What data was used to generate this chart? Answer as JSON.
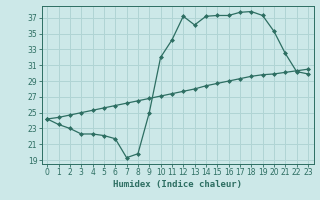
{
  "title": "",
  "xlabel": "Humidex (Indice chaleur)",
  "background_color": "#cce8e8",
  "grid_color": "#b0d4d4",
  "line_color": "#2d6e62",
  "xlim": [
    -0.5,
    23.5
  ],
  "ylim": [
    18.5,
    38.5
  ],
  "yticks": [
    19,
    21,
    23,
    25,
    27,
    29,
    31,
    33,
    35,
    37
  ],
  "xticks": [
    0,
    1,
    2,
    3,
    4,
    5,
    6,
    7,
    8,
    9,
    10,
    11,
    12,
    13,
    14,
    15,
    16,
    17,
    18,
    19,
    20,
    21,
    22,
    23
  ],
  "line1_x": [
    0,
    1,
    2,
    3,
    4,
    5,
    6,
    7,
    8,
    9,
    10,
    11,
    12,
    13,
    14,
    15,
    16,
    17,
    18,
    19,
    20,
    21,
    22,
    23
  ],
  "line1_y": [
    24.2,
    23.5,
    23.0,
    22.3,
    22.3,
    22.1,
    21.7,
    19.3,
    19.8,
    25.0,
    32.0,
    34.2,
    37.2,
    36.1,
    37.2,
    37.3,
    37.3,
    37.7,
    37.8,
    37.3,
    35.3,
    32.5,
    30.2,
    29.9
  ],
  "line2_x": [
    0,
    1,
    2,
    3,
    4,
    5,
    6,
    7,
    8,
    9,
    10,
    11,
    12,
    13,
    14,
    15,
    16,
    17,
    18,
    19,
    20,
    21,
    22,
    23
  ],
  "line2_y": [
    24.2,
    24.4,
    24.7,
    25.0,
    25.3,
    25.6,
    25.9,
    26.2,
    26.5,
    26.8,
    27.1,
    27.4,
    27.7,
    28.0,
    28.4,
    28.7,
    29.0,
    29.3,
    29.6,
    29.8,
    29.9,
    30.1,
    30.3,
    30.5
  ]
}
